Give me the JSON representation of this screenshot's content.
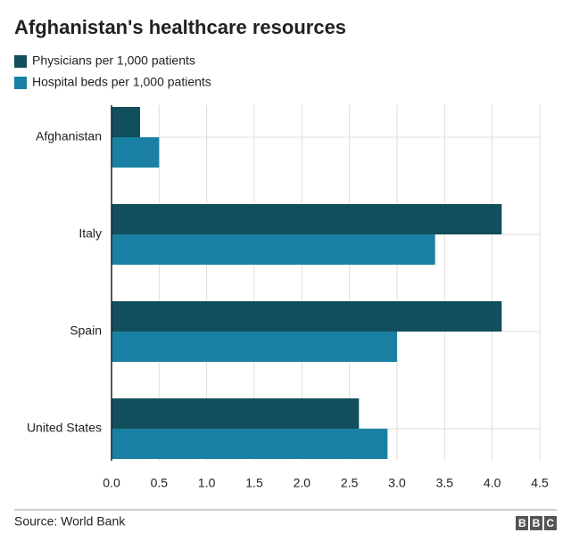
{
  "chart_data": {
    "type": "bar",
    "orientation": "horizontal",
    "title": "Afghanistan's healthcare resources",
    "categories": [
      "Afghanistan",
      "Italy",
      "Spain",
      "United States"
    ],
    "series": [
      {
        "name": "Physicians per 1,000 patients",
        "color": "#124f5d",
        "values": [
          0.3,
          4.1,
          4.1,
          2.6
        ]
      },
      {
        "name": "Hospital beds per 1,000 patients",
        "color": "#1a80a3",
        "values": [
          0.5,
          3.4,
          3.0,
          2.9
        ]
      }
    ],
    "xlim": [
      0,
      4.5
    ],
    "xticks": [
      {
        "value": 0,
        "label": "0.0"
      },
      0.5,
      {
        "value": 1,
        "label": "1.0"
      },
      1.5,
      {
        "value": 2,
        "label": "2.0"
      },
      2.5,
      {
        "value": 3,
        "label": "3.0"
      },
      3.5,
      {
        "value": 4,
        "label": "4.0"
      },
      4.5
    ],
    "grid": true,
    "source": "Source: World Bank",
    "logo": "BBC"
  }
}
